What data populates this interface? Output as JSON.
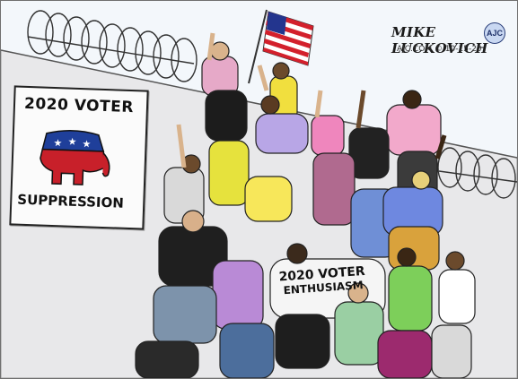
{
  "sign": {
    "line1": "2020 VOTER",
    "line2": "SUPPRESSION",
    "logo_icon": "republican-elephant-icon"
  },
  "shirt": {
    "line1": "2020 VOTER",
    "line2": "ENTHUSIASM"
  },
  "signature": {
    "name": "MIKE LUCKOVICH",
    "badge": "AJC",
    "sub": "AJC.COM © 10-15-20"
  },
  "colors": {
    "sky": "#f3f7fb",
    "wall": "#e6e6e8",
    "elephant_red": "#c8202a",
    "elephant_blue": "#1f3f9a",
    "flag_red": "#d3202c",
    "flag_blue": "#23358e"
  }
}
